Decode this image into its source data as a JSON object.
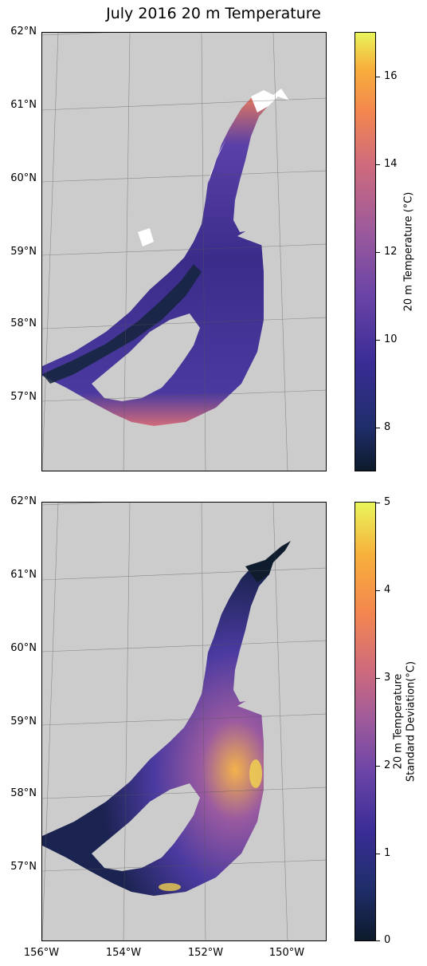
{
  "title": "July 2016 20 m Temperature",
  "lat_labels": [
    "62°N",
    "61°N",
    "60°N",
    "59°N",
    "58°N",
    "57°N"
  ],
  "lon_labels": [
    "156°W",
    "154°W",
    "152°W",
    "150°W"
  ],
  "colors": {
    "land": "#cccccc",
    "coast_white": "#ffffff",
    "cmap_low": "#0d1a2b",
    "cmap_high": "#e9f55b"
  },
  "top": {
    "colorbar_label": "20 m Temperature (°C)",
    "colorbar_ticks": [
      "16",
      "14",
      "12",
      "10",
      "8"
    ],
    "vmin": 7,
    "vmax": 17
  },
  "bottom": {
    "colorbar_label_line1": "20 m Temperature",
    "colorbar_label_line2": "Standard Deviation(°C)",
    "colorbar_ticks": [
      "5",
      "4",
      "3",
      "2",
      "1",
      "0"
    ],
    "vmin": 0,
    "vmax": 5
  }
}
